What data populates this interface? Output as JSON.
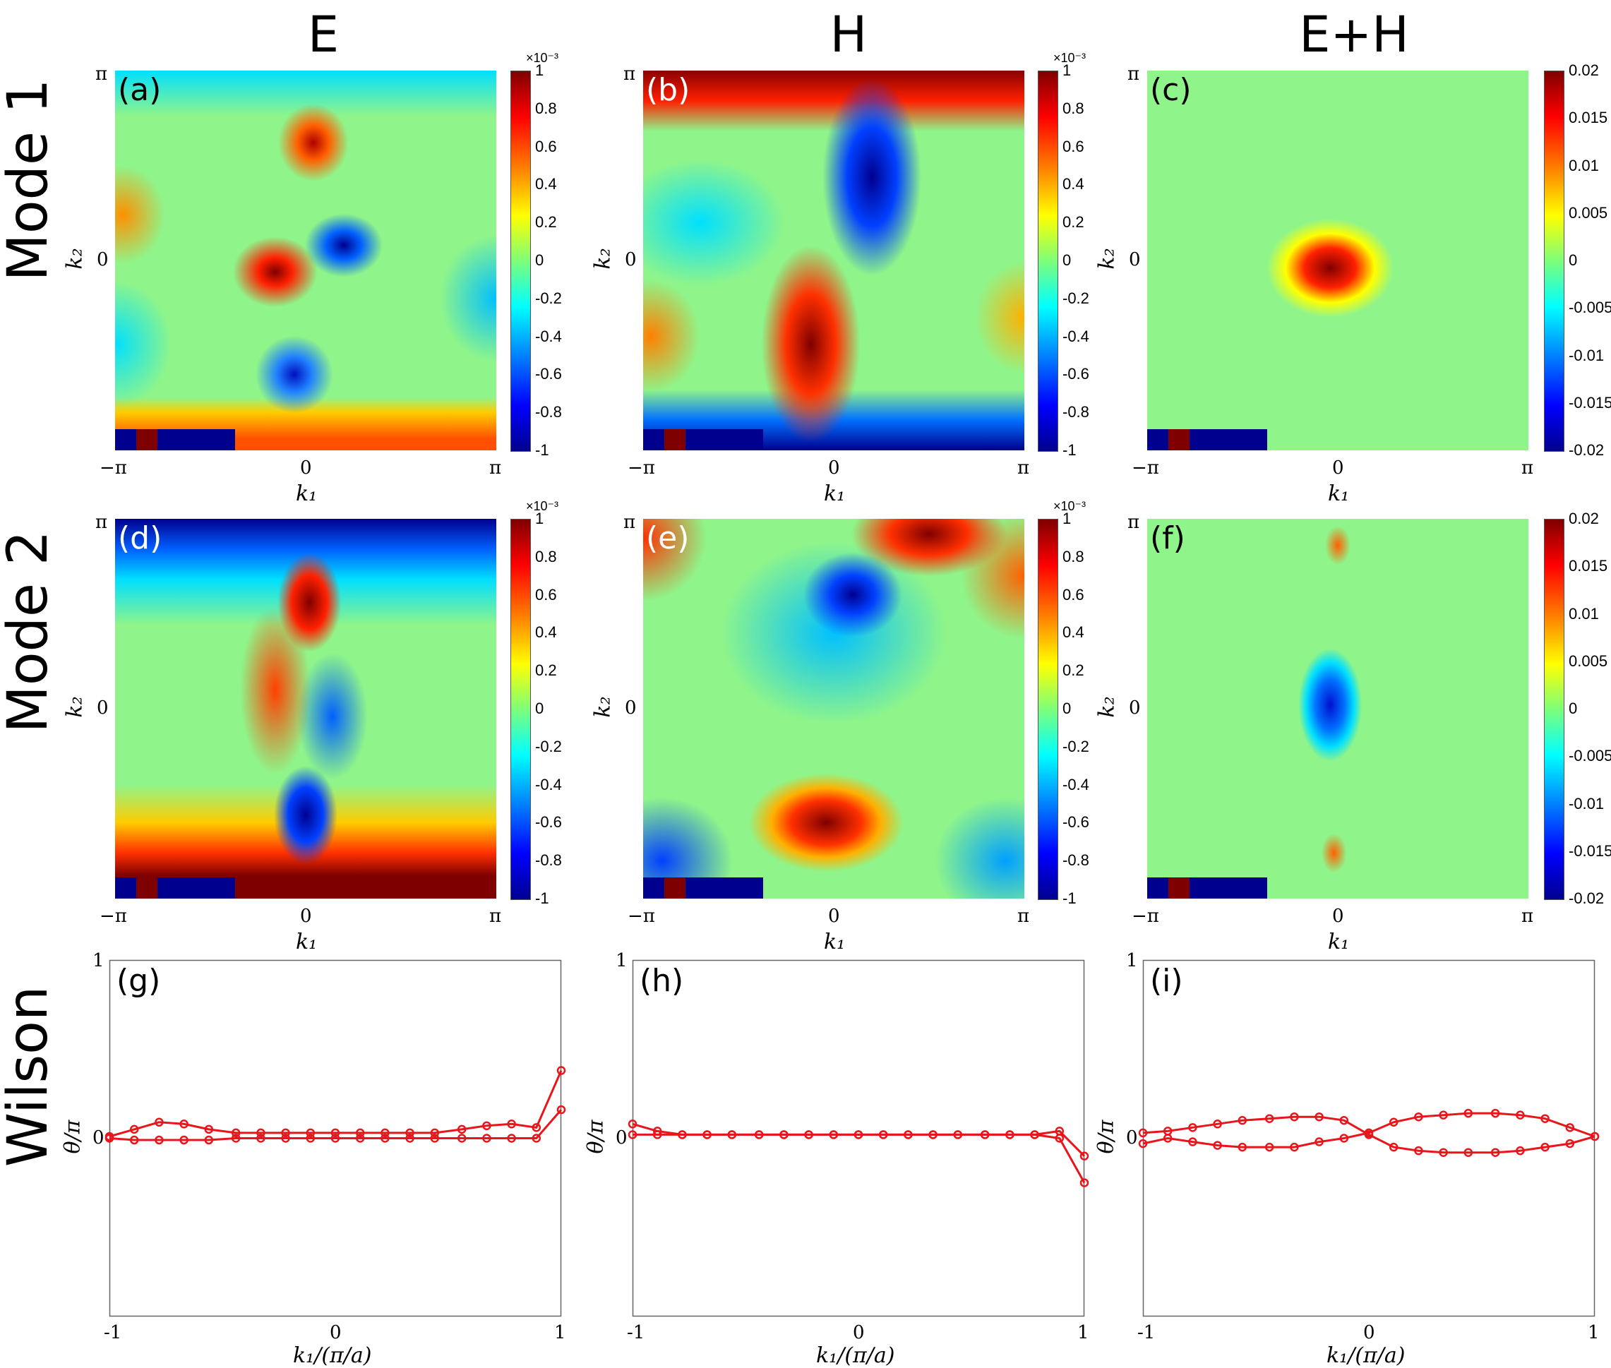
{
  "column_titles": [
    "E",
    "H",
    "E+H"
  ],
  "row_titles": [
    "Mode 1",
    "Mode 2",
    "Wilson"
  ],
  "panel_labels": [
    "(a)",
    "(b)",
    "(c)",
    "(d)",
    "(e)",
    "(f)",
    "(g)",
    "(h)",
    "(i)"
  ],
  "heatmap_axes": {
    "xticks": [
      "−π",
      "0",
      "π"
    ],
    "yticks": [
      "π",
      "0"
    ],
    "xlabel": "k₁",
    "ylabel": "k₂"
  },
  "colorbars": {
    "small": {
      "ticks": [
        "1",
        "0.8",
        "0.6",
        "0.4",
        "0.2",
        "0",
        "-0.2",
        "-0.4",
        "-0.6",
        "-0.8",
        "-1"
      ],
      "exponent": "×10⁻³"
    },
    "large": {
      "ticks": [
        "0.02",
        "0.015",
        "0.01",
        "0.005",
        "0",
        "-0.005",
        "-0.01",
        "-0.015",
        "-0.02"
      ]
    }
  },
  "wilson_axes": {
    "xticks": [
      "-1",
      "0",
      "1"
    ],
    "yticks": [
      "1",
      "0"
    ],
    "xlabel": "k₁/(π/a)",
    "ylabel": "θ/π"
  },
  "colors": {
    "line": "#e8151b",
    "frame": "#666666"
  },
  "chart_data": [
    {
      "type": "heatmap",
      "panel": "(a)",
      "title": "E",
      "row": "Mode 1",
      "colorbar_range": [
        -0.001,
        0.001
      ],
      "xlim": [
        "-π",
        "π"
      ],
      "ylim": [
        "-π",
        "π"
      ]
    },
    {
      "type": "heatmap",
      "panel": "(b)",
      "title": "H",
      "row": "Mode 1",
      "colorbar_range": [
        -0.001,
        0.001
      ],
      "xlim": [
        "-π",
        "π"
      ],
      "ylim": [
        "-π",
        "π"
      ]
    },
    {
      "type": "heatmap",
      "panel": "(c)",
      "title": "E+H",
      "row": "Mode 1",
      "colorbar_range": [
        -0.02,
        0.02
      ],
      "xlim": [
        "-π",
        "π"
      ],
      "ylim": [
        "-π",
        "π"
      ]
    },
    {
      "type": "heatmap",
      "panel": "(d)",
      "title": "E",
      "row": "Mode 2",
      "colorbar_range": [
        -0.001,
        0.001
      ],
      "xlim": [
        "-π",
        "π"
      ],
      "ylim": [
        "-π",
        "π"
      ]
    },
    {
      "type": "heatmap",
      "panel": "(e)",
      "title": "H",
      "row": "Mode 2",
      "colorbar_range": [
        -0.001,
        0.001
      ],
      "xlim": [
        "-π",
        "π"
      ],
      "ylim": [
        "-π",
        "π"
      ]
    },
    {
      "type": "heatmap",
      "panel": "(f)",
      "title": "E+H",
      "row": "Mode 2",
      "colorbar_range": [
        -0.02,
        0.02
      ],
      "xlim": [
        "-π",
        "π"
      ],
      "ylim": [
        "-π",
        "π"
      ]
    },
    {
      "type": "line",
      "panel": "(g)",
      "row": "Wilson",
      "xlim": [
        -1,
        1
      ],
      "ylim": [
        -1,
        1
      ],
      "x": [
        -1,
        -0.89,
        -0.78,
        -0.67,
        -0.56,
        -0.44,
        -0.33,
        -0.22,
        -0.11,
        0,
        0.11,
        0.22,
        0.33,
        0.44,
        0.56,
        0.67,
        0.78,
        0.89,
        1
      ],
      "series": [
        {
          "values": [
            0.01,
            0.05,
            0.09,
            0.08,
            0.05,
            0.03,
            0.03,
            0.03,
            0.03,
            0.03,
            0.03,
            0.03,
            0.03,
            0.03,
            0.05,
            0.07,
            0.08,
            0.06,
            0.38
          ]
        },
        {
          "values": [
            0.0,
            -0.01,
            -0.01,
            -0.01,
            -0.01,
            0.0,
            0.0,
            0.0,
            0.0,
            0.0,
            0.0,
            0.0,
            0.0,
            0.0,
            0.0,
            0.0,
            0.0,
            0.0,
            0.16
          ]
        }
      ]
    },
    {
      "type": "line",
      "panel": "(h)",
      "row": "Wilson",
      "xlim": [
        -1,
        1
      ],
      "ylim": [
        -1,
        1
      ],
      "x": [
        -1,
        -0.89,
        -0.78,
        -0.67,
        -0.56,
        -0.44,
        -0.33,
        -0.22,
        -0.11,
        0,
        0.11,
        0.22,
        0.33,
        0.44,
        0.56,
        0.67,
        0.78,
        0.89,
        1
      ],
      "series": [
        {
          "values": [
            0.08,
            0.04,
            0.02,
            0.02,
            0.02,
            0.02,
            0.02,
            0.02,
            0.02,
            0.02,
            0.02,
            0.02,
            0.02,
            0.02,
            0.02,
            0.02,
            0.02,
            0.04,
            -0.1
          ]
        },
        {
          "values": [
            0.02,
            0.02,
            0.02,
            0.02,
            0.02,
            0.02,
            0.02,
            0.02,
            0.02,
            0.02,
            0.02,
            0.02,
            0.02,
            0.02,
            0.02,
            0.02,
            0.02,
            0.0,
            -0.25
          ]
        }
      ]
    },
    {
      "type": "line",
      "panel": "(i)",
      "row": "Wilson",
      "xlim": [
        -1,
        1
      ],
      "ylim": [
        -1,
        1
      ],
      "x": [
        -1,
        -0.89,
        -0.78,
        -0.67,
        -0.56,
        -0.44,
        -0.33,
        -0.22,
        -0.11,
        0,
        0.11,
        0.22,
        0.33,
        0.44,
        0.56,
        0.67,
        0.78,
        0.89,
        1
      ],
      "series": [
        {
          "values": [
            0.03,
            0.04,
            0.06,
            0.08,
            0.1,
            0.11,
            0.12,
            0.12,
            0.1,
            0.02,
            -0.05,
            -0.07,
            -0.08,
            -0.08,
            -0.08,
            -0.07,
            -0.05,
            -0.03,
            0.01
          ]
        },
        {
          "values": [
            -0.03,
            0.0,
            -0.02,
            -0.04,
            -0.05,
            -0.05,
            -0.05,
            -0.02,
            0.0,
            0.03,
            0.09,
            0.12,
            0.13,
            0.14,
            0.14,
            0.13,
            0.11,
            0.06,
            0.01
          ]
        }
      ]
    }
  ]
}
